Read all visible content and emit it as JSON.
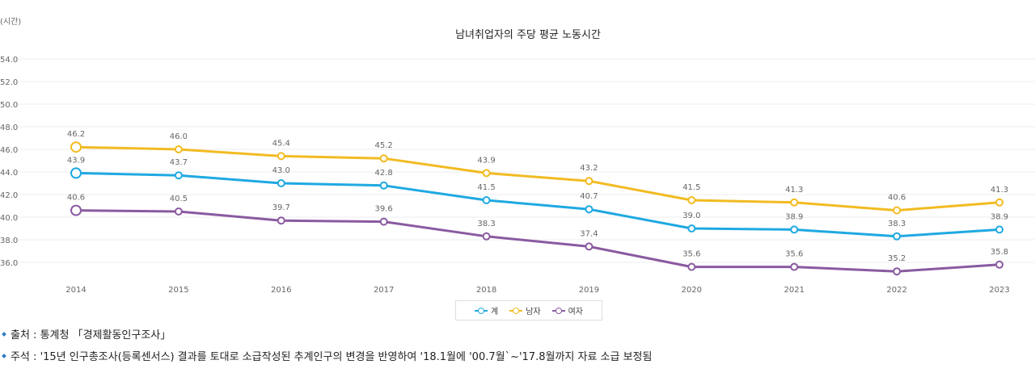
{
  "chart_data": {
    "type": "line",
    "title": "남녀취업자의 주당 평균 노동시간",
    "ylabel": "(시간)",
    "xlabel": "",
    "ylim": [
      35,
      54
    ],
    "yticks": [
      "54.0",
      "52.0",
      "50.0",
      "48.0",
      "46.0",
      "44.0",
      "42.0",
      "40.0",
      "38.0",
      "36.0"
    ],
    "ytick_values": [
      54,
      52,
      50,
      48,
      46,
      44,
      42,
      40,
      38,
      36
    ],
    "categories": [
      "2014",
      "2015",
      "2016",
      "2017",
      "2018",
      "2019",
      "2020",
      "2021",
      "2022",
      "2023"
    ],
    "series": [
      {
        "name": "계",
        "color": "#1fa9e1",
        "values": [
          43.9,
          43.7,
          43.0,
          42.8,
          41.5,
          40.7,
          39.0,
          38.9,
          38.3,
          38.9
        ],
        "labels": [
          "43.9",
          "43.7",
          "43.0",
          "42.8",
          "41.5",
          "40.7",
          "39.0",
          "38.9",
          "38.3",
          "38.9"
        ]
      },
      {
        "name": "남자",
        "color": "#f2bb22",
        "values": [
          46.2,
          46.0,
          45.4,
          45.2,
          43.9,
          43.2,
          41.5,
          41.3,
          40.6,
          41.3
        ],
        "labels": [
          "46.2",
          "46.0",
          "45.4",
          "45.2",
          "43.9",
          "43.2",
          "41.5",
          "41.3",
          "40.6",
          "41.3"
        ]
      },
      {
        "name": "여자",
        "color": "#8a5aa0",
        "values": [
          40.6,
          40.5,
          39.7,
          39.6,
          38.3,
          37.4,
          35.6,
          35.6,
          35.2,
          35.8
        ],
        "labels": [
          "40.6",
          "40.5",
          "39.7",
          "39.6",
          "38.3",
          "37.4",
          "35.6",
          "35.6",
          "35.2",
          "35.8"
        ]
      }
    ],
    "legend_position": "bottom-center",
    "grid": true
  },
  "notes": {
    "source": "출처 : 통계청 「경제활동인구조사」",
    "remark": "주석 : '15년 인구총조사(등록센서스) 결과를 토대로 소급작성된 추계인구의 변경을 반영하여 '18.1월에 '00.7월`~'17.8월까지 자료 소급 보정됨"
  }
}
